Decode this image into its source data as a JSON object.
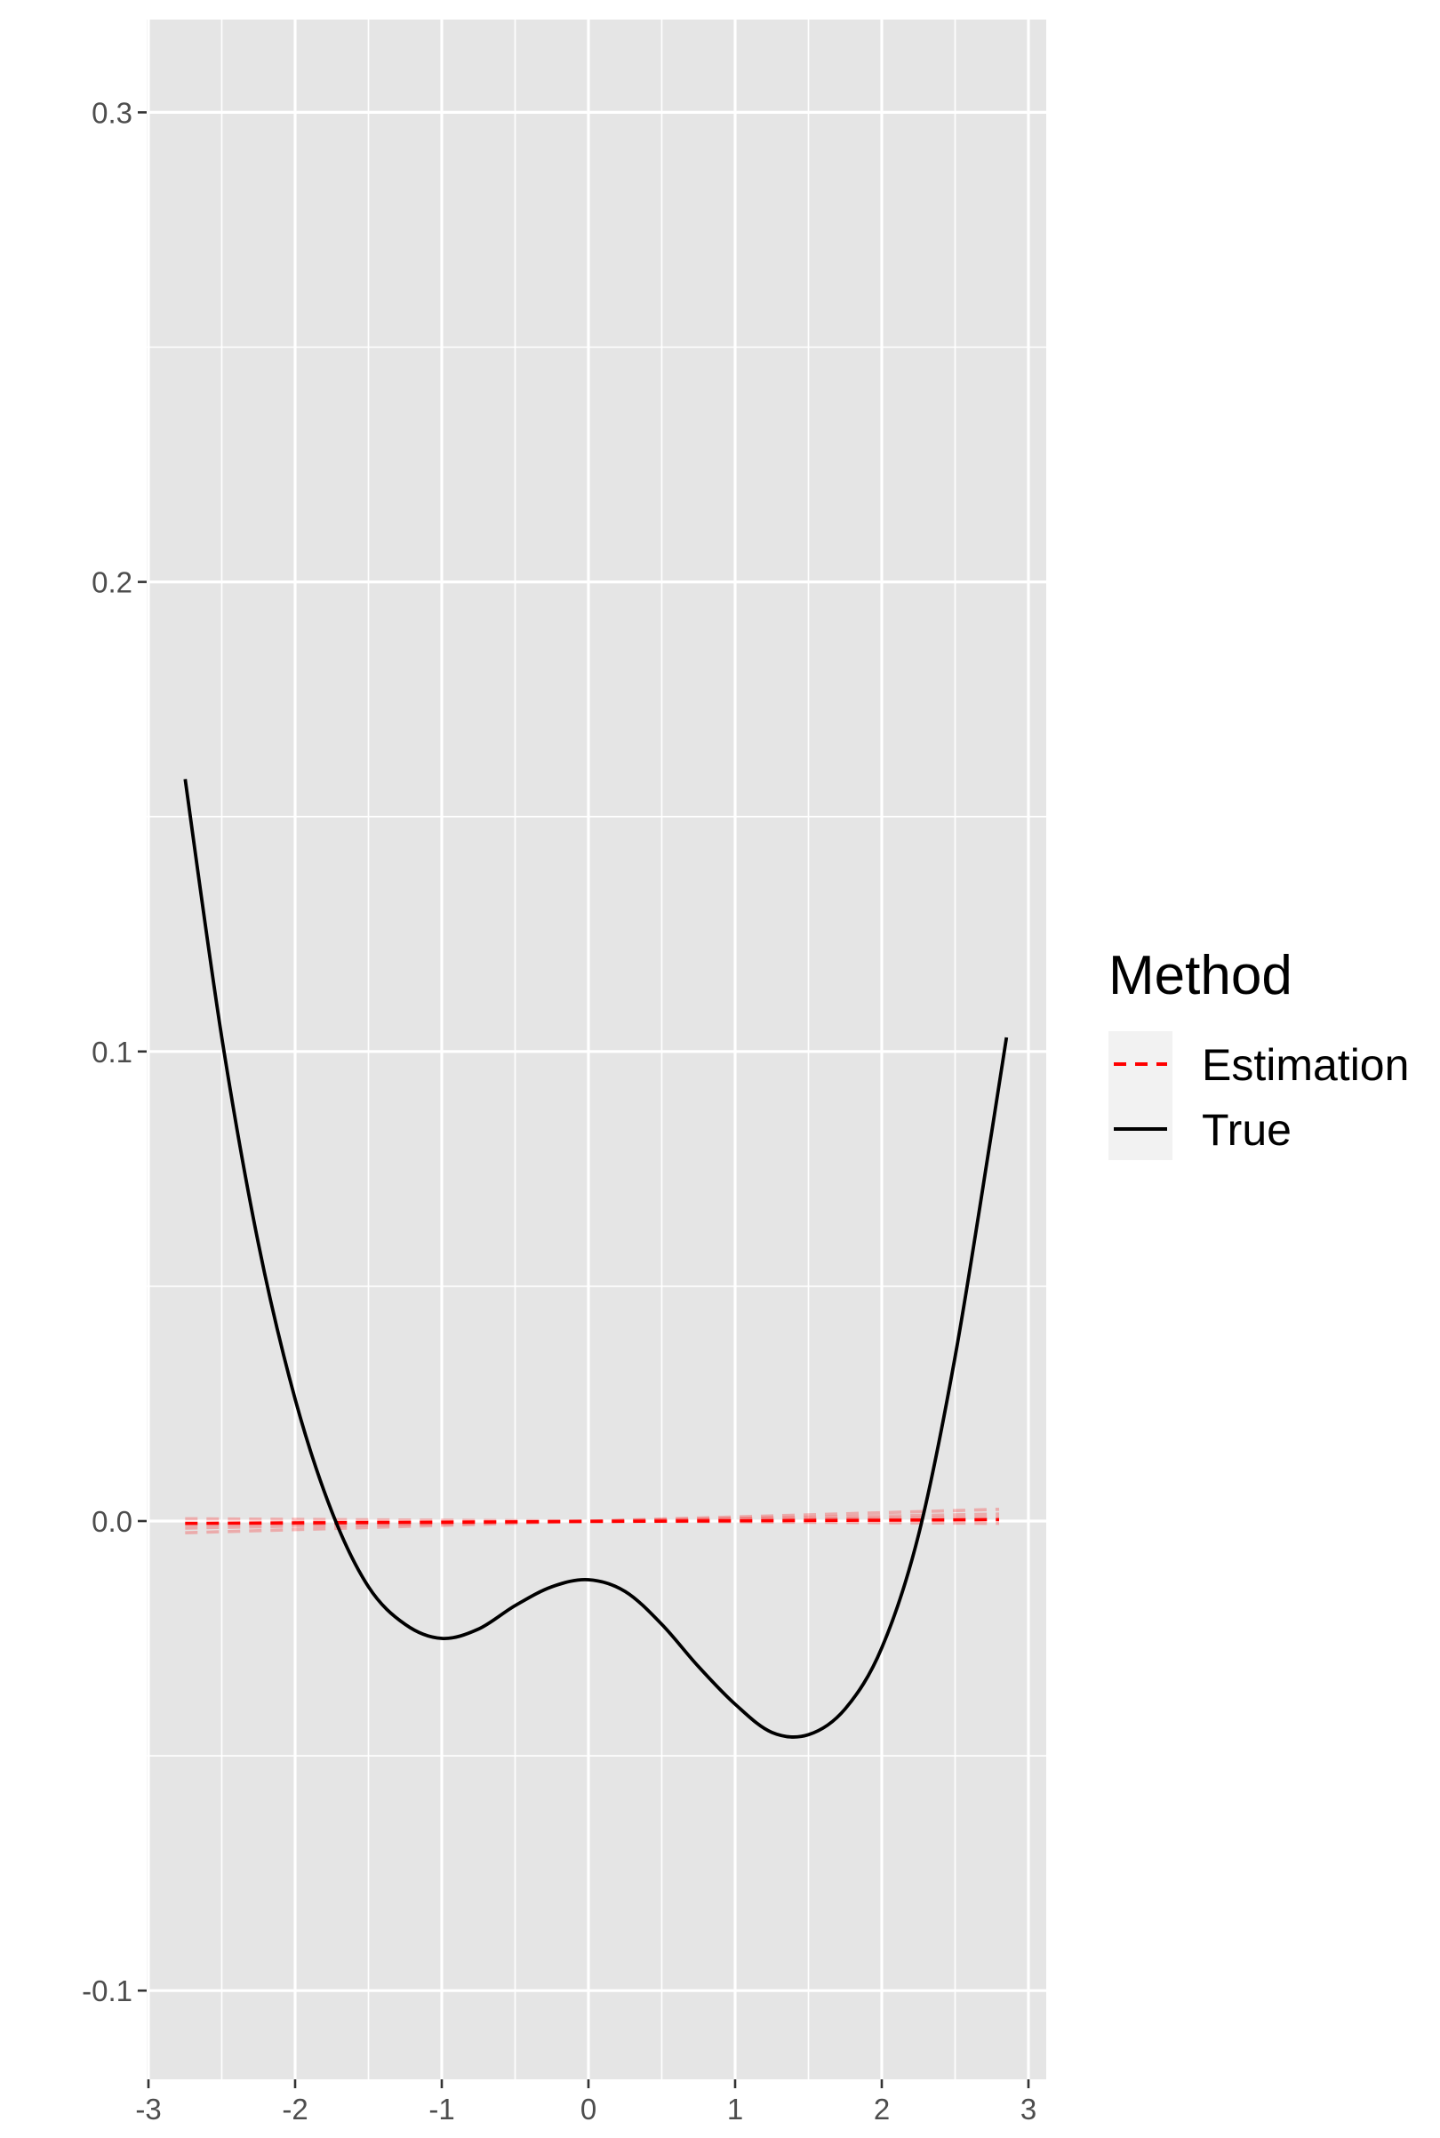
{
  "chart_data": {
    "type": "line",
    "title": "",
    "xlabel": "",
    "ylabel": "",
    "xlim": [
      -3,
      3.05
    ],
    "ylim": [
      -0.12,
      0.32
    ],
    "x_ticks": [
      -3,
      -2,
      -1,
      0,
      1,
      2,
      3
    ],
    "x_tick_labels": [
      "-3",
      "-2",
      "-1",
      "0",
      "1",
      "2",
      "3"
    ],
    "y_ticks": [
      -0.1,
      0.0,
      0.1,
      0.2,
      0.3
    ],
    "y_tick_labels": [
      "-0.1",
      "0.0",
      "0.1",
      "0.2",
      "0.3"
    ],
    "grid": true,
    "legend": {
      "title": "Method",
      "position": "right",
      "entries": [
        {
          "label": "Estimation",
          "color": "#ff0000",
          "linetype": "dashed"
        },
        {
          "label": "True",
          "color": "#000000",
          "linetype": "solid"
        }
      ]
    },
    "series": [
      {
        "name": "True",
        "color": "#000000",
        "linetype": "solid",
        "x": [
          -2.75,
          -2.5,
          -2.25,
          -2.0,
          -1.75,
          -1.5,
          -1.25,
          -1.0,
          -0.75,
          -0.5,
          -0.25,
          0.0,
          0.25,
          0.5,
          0.75,
          1.0,
          1.25,
          1.5,
          1.75,
          2.0,
          2.25,
          2.5,
          2.75,
          2.85
        ],
        "y": [
          0.158,
          0.103,
          0.059,
          0.026,
          0.002,
          -0.014,
          -0.022,
          -0.025,
          -0.023,
          -0.018,
          -0.014,
          -0.0125,
          -0.015,
          -0.022,
          -0.031,
          -0.039,
          -0.045,
          -0.0455,
          -0.04,
          -0.027,
          -0.003,
          0.035,
          0.083,
          0.103
        ]
      },
      {
        "name": "Estimation",
        "color": "#ff0000",
        "linetype": "dashed",
        "x": [
          -2.75,
          2.8
        ],
        "y": [
          -0.0005,
          0.0003
        ]
      },
      {
        "name": "Estimation",
        "color": "#ff0000",
        "linetype": "dashed",
        "opacity": 0.25,
        "x": [
          -2.75,
          2.8
        ],
        "y": [
          -0.0025,
          0.0025
        ]
      },
      {
        "name": "Estimation",
        "color": "#ff0000",
        "linetype": "dashed",
        "opacity": 0.25,
        "x": [
          -2.75,
          2.8
        ],
        "y": [
          -0.0015,
          0.0015
        ]
      },
      {
        "name": "Estimation",
        "color": "#ff0000",
        "linetype": "dashed",
        "opacity": 0.25,
        "x": [
          -2.75,
          2.8
        ],
        "y": [
          0.0005,
          -0.0005
        ]
      },
      {
        "name": "Estimation",
        "color": "#ff0000",
        "linetype": "dashed",
        "opacity": 0.25,
        "x": [
          -2.75,
          2.8
        ],
        "y": [
          -0.0008,
          0.0008
        ]
      }
    ]
  }
}
